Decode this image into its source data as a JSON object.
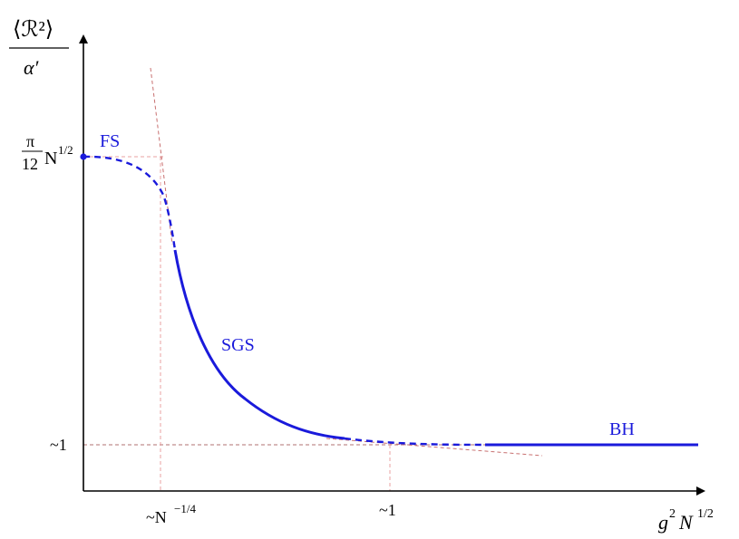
{
  "y_axis": {
    "title_numerator": "⟨ℛ²⟩",
    "title_denominator": "α′",
    "ticks": [
      {
        "id": "fs_level",
        "text_prefix": "π",
        "text_sub": "12",
        "text_main": "N",
        "text_sup": "1/2"
      },
      {
        "id": "one",
        "text": "~1"
      }
    ]
  },
  "x_axis": {
    "title_main": "g",
    "title_sup1": "2",
    "title_main2": "N",
    "title_sup2": "1/2",
    "ticks": [
      {
        "id": "n_quarter",
        "text_main": "~N",
        "text_sup": "−1/4"
      },
      {
        "id": "one",
        "text": "~1"
      }
    ]
  },
  "regions": {
    "fs": "FS",
    "sgs": "SGS",
    "bh": "BH"
  },
  "colors": {
    "curve": "#1a1adb",
    "guide": "#e8a0a0",
    "axis": "#000000"
  }
}
